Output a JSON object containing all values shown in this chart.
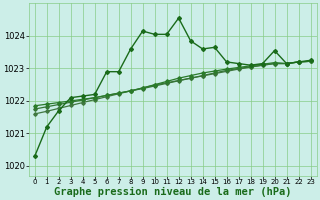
{
  "bg_color": "#cceee8",
  "grid_color": "#88cc88",
  "xlabel": "Graphe pression niveau de la mer (hPa)",
  "xlabel_fontsize": 7.5,
  "xlim": [
    -0.5,
    23.5
  ],
  "ylim": [
    1019.7,
    1025.0
  ],
  "yticks": [
    1020,
    1021,
    1022,
    1023,
    1024
  ],
  "ytick_fontsize": 6.0,
  "xtick_fontsize": 5.0,
  "xticks": [
    0,
    1,
    2,
    3,
    4,
    5,
    6,
    7,
    8,
    9,
    10,
    11,
    12,
    13,
    14,
    15,
    16,
    17,
    18,
    19,
    20,
    21,
    22,
    23
  ],
  "series": [
    {
      "x": [
        0,
        1,
        2,
        3,
        4,
        5,
        6,
        7,
        8,
        9,
        10,
        11,
        12,
        13,
        14,
        15,
        16,
        17,
        18,
        19,
        20,
        21,
        22,
        23
      ],
      "y": [
        1020.3,
        1021.2,
        1021.7,
        1022.1,
        1022.15,
        1022.2,
        1022.9,
        1022.9,
        1023.6,
        1024.15,
        1024.05,
        1024.05,
        1024.55,
        1023.85,
        1023.6,
        1023.65,
        1023.2,
        1023.15,
        1023.1,
        1023.15,
        1023.55,
        1023.15,
        1023.2,
        1023.25
      ],
      "style": "-",
      "marker": "D",
      "markersize": 2.0,
      "linewidth": 1.0,
      "color": "#1a6b1a",
      "zorder": 5
    },
    {
      "x": [
        0,
        1,
        2,
        3,
        4,
        5,
        6,
        7,
        8,
        9,
        10,
        11,
        12,
        13,
        14,
        15,
        16,
        17,
        18,
        19,
        20,
        21,
        22,
        23
      ],
      "y": [
        1021.85,
        1021.9,
        1021.95,
        1022.0,
        1022.05,
        1022.1,
        1022.17,
        1022.24,
        1022.31,
        1022.4,
        1022.5,
        1022.6,
        1022.7,
        1022.78,
        1022.86,
        1022.92,
        1022.98,
        1023.03,
        1023.08,
        1023.13,
        1023.18,
        1023.15,
        1023.2,
        1023.22
      ],
      "style": "-",
      "marker": "D",
      "markersize": 1.8,
      "linewidth": 0.9,
      "color": "#2a7b2a",
      "zorder": 4
    },
    {
      "x": [
        0,
        1,
        2,
        3,
        4,
        5,
        6,
        7,
        8,
        9,
        10,
        11,
        12,
        13,
        14,
        15,
        16,
        17,
        18,
        19,
        20,
        21,
        22,
        23
      ],
      "y": [
        1021.75,
        1021.82,
        1021.89,
        1021.96,
        1022.03,
        1022.1,
        1022.17,
        1022.24,
        1022.31,
        1022.38,
        1022.46,
        1022.54,
        1022.62,
        1022.7,
        1022.78,
        1022.86,
        1022.94,
        1023.0,
        1023.05,
        1023.1,
        1023.15,
        1023.15,
        1023.2,
        1023.22
      ],
      "style": "-",
      "marker": "D",
      "markersize": 1.8,
      "linewidth": 0.9,
      "color": "#357535",
      "zorder": 3
    },
    {
      "x": [
        0,
        1,
        2,
        3,
        4,
        5,
        6,
        7,
        8,
        9,
        10,
        11,
        12,
        13,
        14,
        15,
        16,
        17,
        18,
        19,
        20,
        21,
        22,
        23
      ],
      "y": [
        1021.6,
        1021.68,
        1021.77,
        1021.86,
        1021.95,
        1022.04,
        1022.13,
        1022.22,
        1022.31,
        1022.4,
        1022.49,
        1022.56,
        1022.63,
        1022.7,
        1022.77,
        1022.84,
        1022.91,
        1022.98,
        1023.04,
        1023.1,
        1023.15,
        1023.15,
        1023.2,
        1023.22
      ],
      "style": "-",
      "marker": "D",
      "markersize": 1.8,
      "linewidth": 0.9,
      "color": "#407840",
      "zorder": 2
    }
  ]
}
